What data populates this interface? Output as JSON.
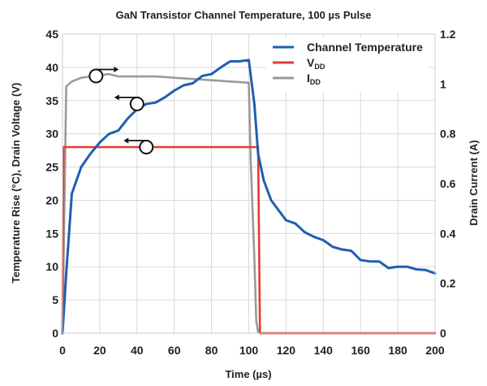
{
  "chart_data": {
    "type": "line",
    "title": "GaN Transistor Channel Temperature, 100 µs Pulse",
    "xlabel": "Time (µs)",
    "ylabel": "Temperature Rise (°C), Drain Voltage (V)",
    "y2label": "Drain Current (A)",
    "xlim": [
      0,
      200
    ],
    "ylim": [
      0,
      45
    ],
    "y2lim": [
      0,
      1.2
    ],
    "xticks": [
      "0",
      "20",
      "40",
      "60",
      "80",
      "100",
      "120",
      "140",
      "160",
      "180",
      "200"
    ],
    "yticks": [
      "0",
      "5",
      "10",
      "15",
      "20",
      "25",
      "30",
      "35",
      "40",
      "45"
    ],
    "y2ticks": [
      "0",
      "0.2",
      "0.4",
      "0.6",
      "0.8",
      "1",
      "1.2"
    ],
    "grid": true,
    "legend_position": "top-right",
    "series": [
      {
        "name": "Channel Temperature",
        "axis": "left",
        "color": "#1f5fb0",
        "x": [
          0,
          2,
          5,
          10,
          15,
          20,
          25,
          30,
          35,
          40,
          45,
          50,
          55,
          60,
          65,
          70,
          75,
          80,
          85,
          90,
          95,
          100,
          103,
          105,
          108,
          112,
          116,
          120,
          125,
          130,
          135,
          140,
          145,
          150,
          155,
          160,
          165,
          170,
          175,
          180,
          185,
          190,
          195,
          200
        ],
        "y": [
          0,
          9,
          21,
          25,
          27,
          28.7,
          30,
          30.5,
          32.3,
          33.7,
          34.5,
          34.7,
          35.5,
          36.5,
          37.3,
          37.6,
          38.7,
          39,
          40,
          40.9,
          40.9,
          41.1,
          34.5,
          27,
          23,
          20,
          18.5,
          17,
          16.5,
          15.2,
          14.5,
          14,
          13,
          12.6,
          12.4,
          11,
          10.8,
          10.8,
          9.8,
          10,
          10,
          9.6,
          9.5,
          9
        ]
      },
      {
        "name": "VDD",
        "name_main": "V",
        "name_sub": "DD",
        "axis": "left",
        "color": "#e53a2e",
        "x": [
          0,
          0.5,
          2,
          100,
          105,
          106,
          200
        ],
        "y": [
          0,
          28,
          28,
          28,
          28,
          0,
          0
        ]
      },
      {
        "name": "IDD",
        "name_main": "I",
        "name_sub": "DD",
        "axis": "right",
        "color": "#9a9a9a",
        "x": [
          0,
          2,
          5,
          10,
          15,
          20,
          25,
          30,
          35,
          40,
          50,
          60,
          70,
          80,
          90,
          100,
          101,
          103,
          104,
          105,
          106,
          200
        ],
        "y": [
          0,
          0.99,
          1.01,
          1.025,
          1.03,
          1.035,
          1.04,
          1.03,
          1.03,
          1.03,
          1.03,
          1.025,
          1.02,
          1.015,
          1.01,
          1.005,
          0.7,
          0.3,
          0.05,
          0.005,
          0,
          0
        ]
      }
    ],
    "annotations": [
      {
        "kind": "axis-marker",
        "target_axis": "right",
        "x": 18,
        "y": 38.7,
        "arrow_direction": "right"
      },
      {
        "kind": "axis-marker",
        "target_axis": "left",
        "x": 40,
        "y": 34.5,
        "arrow_direction": "left"
      },
      {
        "kind": "axis-marker",
        "target_axis": "left",
        "x": 45,
        "y": 28,
        "arrow_direction": "left"
      }
    ]
  }
}
